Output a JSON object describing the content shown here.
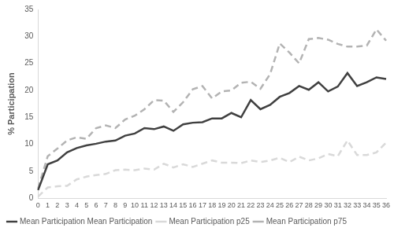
{
  "chart_data": {
    "type": "line",
    "y_label": "% Participation",
    "categories": [
      0,
      1,
      2,
      3,
      4,
      5,
      6,
      7,
      8,
      9,
      10,
      11,
      12,
      13,
      14,
      15,
      16,
      17,
      18,
      19,
      20,
      21,
      22,
      23,
      24,
      25,
      26,
      27,
      28,
      29,
      30,
      31,
      32,
      33,
      34,
      35,
      36
    ],
    "series": [
      {
        "name": "Mean Participation Mean Participation",
        "color": "#404040",
        "line_style": "solid",
        "values": [
          1.5,
          6.3,
          7,
          8.5,
          9.3,
          9.8,
          10.1,
          10.5,
          10.7,
          11.6,
          12,
          13,
          12.8,
          13.3,
          12.5,
          13.7,
          14,
          14.1,
          14.8,
          14.8,
          15.8,
          15,
          18.2,
          16.5,
          17.3,
          18.8,
          19.5,
          20.8,
          20.1,
          21.5,
          19.8,
          20.7,
          23.2,
          20.8,
          21.5,
          22.4,
          22.1
        ]
      },
      {
        "name": "Mean Participation p25",
        "color": "#d9d9d9",
        "line_style": "dashed",
        "values": [
          0.3,
          2,
          2.2,
          2.3,
          3.5,
          4,
          4.3,
          4.5,
          5.2,
          5.3,
          5.2,
          5.5,
          5.3,
          6.4,
          5.7,
          6.3,
          5.8,
          6.4,
          7,
          6.6,
          6.6,
          6.5,
          7,
          6.7,
          7,
          7.5,
          6.7,
          7.7,
          7,
          7.4,
          8.2,
          7.8,
          10.7,
          8,
          8,
          8.5,
          10.3
        ]
      },
      {
        "name": "Mean Participation p75",
        "color": "#b3b3b3",
        "line_style": "dashed",
        "values": [
          1.8,
          7.8,
          9.2,
          10.7,
          11.3,
          11,
          13,
          13.5,
          13,
          14.6,
          15.3,
          16.5,
          18.2,
          18.1,
          16,
          17.8,
          20.2,
          20.8,
          18.5,
          19.8,
          20,
          21.4,
          21.6,
          20.3,
          23,
          28.7,
          27,
          25,
          29.5,
          29.7,
          29.4,
          28.6,
          28.1,
          28.1,
          28.3,
          31.3,
          29.2
        ]
      }
    ],
    "ylim": [
      0,
      35
    ],
    "yticks": [
      0,
      5,
      10,
      15,
      20,
      25,
      30,
      35
    ],
    "grid": false,
    "legend": "bottom"
  }
}
